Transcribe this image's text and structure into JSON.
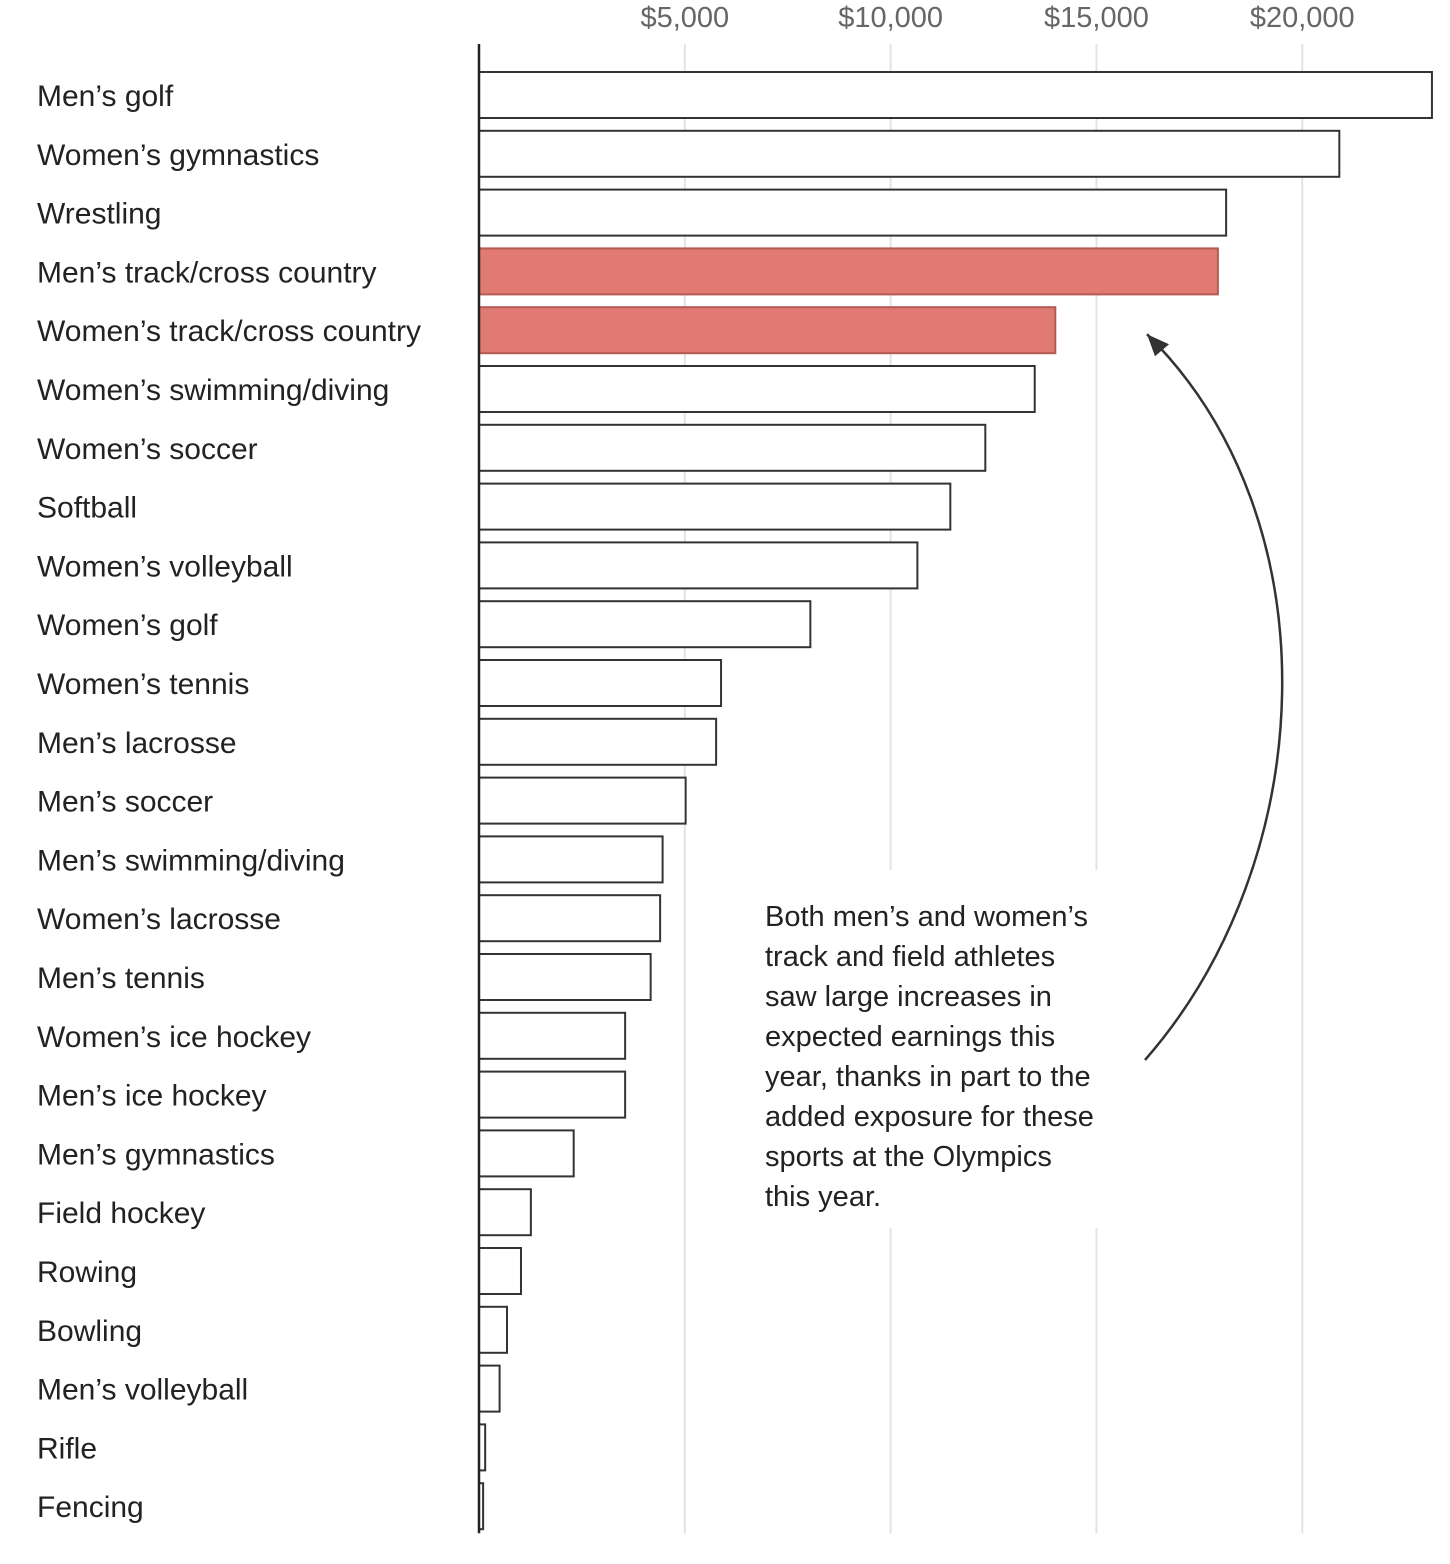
{
  "chart_data": {
    "type": "bar",
    "orientation": "horizontal",
    "title": "",
    "xlabel": "",
    "ylabel": "",
    "xlim": [
      0,
      23200
    ],
    "ticks": [
      {
        "value": 5000,
        "label": "$5,000"
      },
      {
        "value": 10000,
        "label": "$10,000"
      },
      {
        "value": 15000,
        "label": "$15,000"
      },
      {
        "value": 20000,
        "label": "$20,000"
      }
    ],
    "grid": true,
    "colors": {
      "default_fill": "#ffffff",
      "default_stroke": "#333333",
      "highlight_fill": "#e07a73",
      "highlight_stroke": "#b45a54",
      "grid": "#e3e3e3",
      "axis": "#222222"
    },
    "bars": [
      {
        "category": "Men’s golf",
        "value": 23150,
        "highlight": false
      },
      {
        "category": "Women’s gymnastics",
        "value": 20900,
        "highlight": false
      },
      {
        "category": "Wrestling",
        "value": 18150,
        "highlight": false
      },
      {
        "category": "Men’s track/cross country",
        "value": 17950,
        "highlight": true
      },
      {
        "category": "Women’s track/cross country",
        "value": 14000,
        "highlight": true
      },
      {
        "category": "Women’s swimming/diving",
        "value": 13500,
        "highlight": false
      },
      {
        "category": "Women’s soccer",
        "value": 12300,
        "highlight": false
      },
      {
        "category": "Softball",
        "value": 11450,
        "highlight": false
      },
      {
        "category": "Women’s volleyball",
        "value": 10650,
        "highlight": false
      },
      {
        "category": "Women’s golf",
        "value": 8050,
        "highlight": false
      },
      {
        "category": "Women’s tennis",
        "value": 5880,
        "highlight": false
      },
      {
        "category": "Men’s lacrosse",
        "value": 5760,
        "highlight": false
      },
      {
        "category": "Men’s soccer",
        "value": 5020,
        "highlight": false
      },
      {
        "category": "Men’s swimming/diving",
        "value": 4460,
        "highlight": false
      },
      {
        "category": "Women’s lacrosse",
        "value": 4400,
        "highlight": false
      },
      {
        "category": "Men’s tennis",
        "value": 4170,
        "highlight": false
      },
      {
        "category": "Women’s ice hockey",
        "value": 3550,
        "highlight": false
      },
      {
        "category": "Men’s ice hockey",
        "value": 3550,
        "highlight": false
      },
      {
        "category": "Men’s gymnastics",
        "value": 2300,
        "highlight": false
      },
      {
        "category": "Field hockey",
        "value": 1260,
        "highlight": false
      },
      {
        "category": "Rowing",
        "value": 1020,
        "highlight": false
      },
      {
        "category": "Bowling",
        "value": 680,
        "highlight": false
      },
      {
        "category": "Men’s volleyball",
        "value": 500,
        "highlight": false
      },
      {
        "category": "Rifle",
        "value": 150,
        "highlight": false
      },
      {
        "category": "Fencing",
        "value": 100,
        "highlight": false
      }
    ],
    "annotation": {
      "lines": [
        "Both men’s and women’s",
        "track and field athletes",
        "saw large increases in",
        "expected earnings this",
        "year, thanks in part to the",
        "added exposure for these",
        "sports at the Olympics",
        "this year."
      ],
      "points_to": "Women’s track/cross country"
    }
  }
}
